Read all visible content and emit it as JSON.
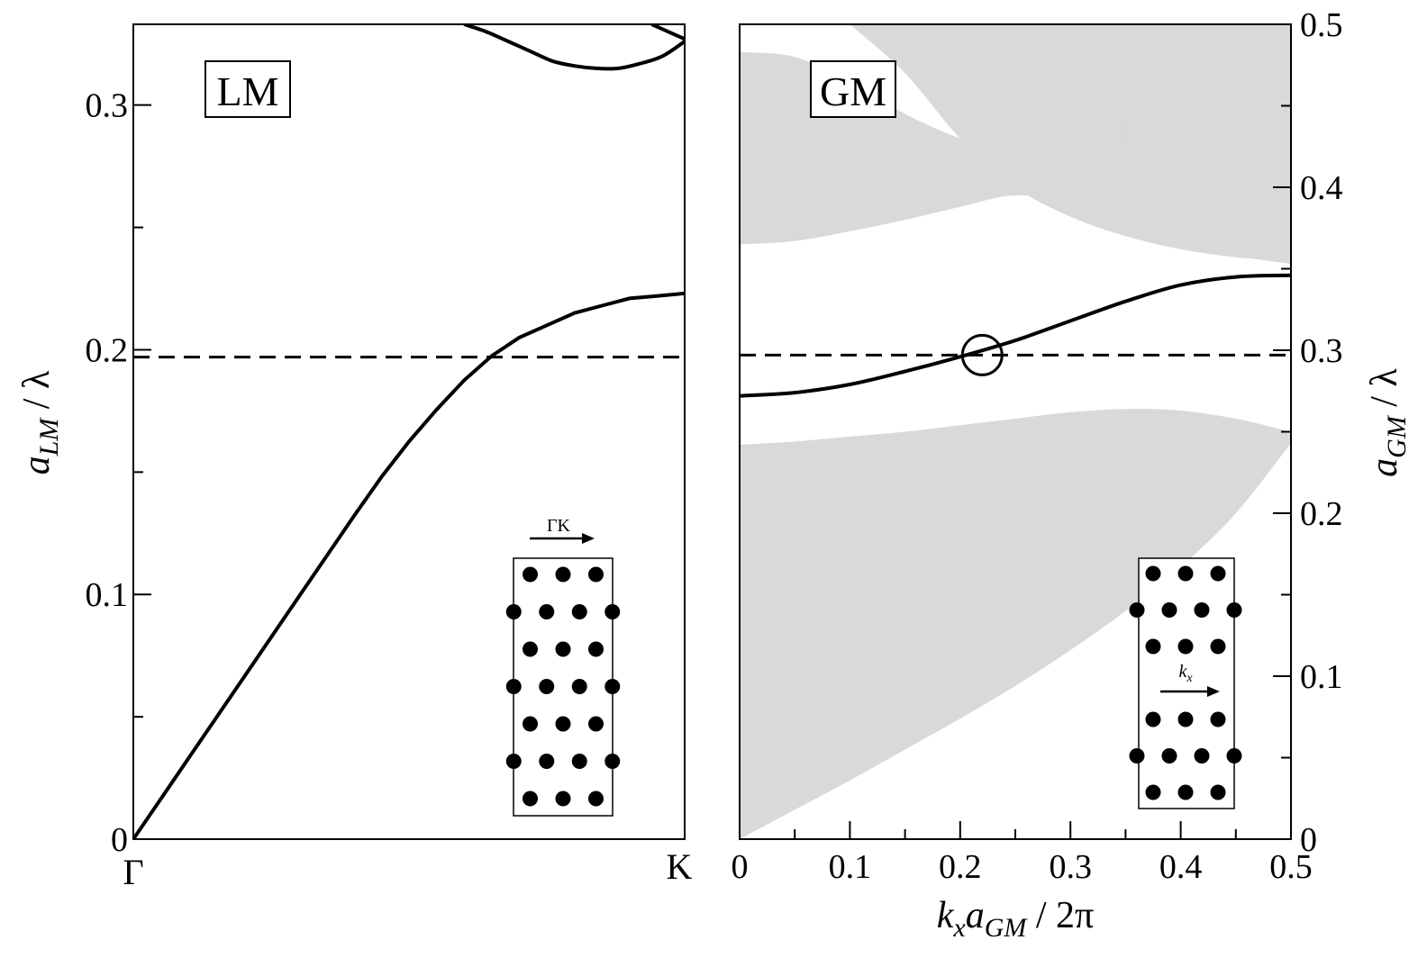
{
  "chart_data": [
    {
      "type": "line",
      "title": "",
      "panel_label": "LM",
      "xlabel": "",
      "ylabel": "a_LM / λ",
      "ylabel_parts": {
        "var": "a",
        "sub": "LM",
        "rest": "/ λ"
      },
      "x_ticks": [
        "Γ",
        "K"
      ],
      "xlim": [
        0,
        1
      ],
      "ylim": [
        0,
        0.333
      ],
      "y_major_ticks": [
        0,
        0.1,
        0.2,
        0.3
      ],
      "y_tick_labels": [
        "0",
        "0.1",
        "0.2",
        "0.3"
      ],
      "y_minor_ticks": [
        0.05,
        0.15,
        0.25
      ],
      "reference_line": {
        "y": 0.197,
        "style": "dashed"
      },
      "series": [
        {
          "x": [
            0,
            0.05,
            0.1,
            0.15,
            0.2,
            0.25,
            0.3,
            0.35,
            0.4,
            0.45,
            0.5,
            0.55,
            0.6,
            0.65,
            0.7,
            0.75,
            0.8,
            0.85,
            0.9,
            0.95,
            1.0
          ],
          "y": [
            0,
            0.0165,
            0.033,
            0.0495,
            0.066,
            0.0825,
            0.099,
            0.1155,
            0.132,
            0.148,
            0.1625,
            0.1755,
            0.1875,
            0.1975,
            0.205,
            0.21,
            0.215,
            0.218,
            0.221,
            0.222,
            0.223
          ]
        },
        {
          "x": [
            0.6,
            0.64,
            0.68,
            0.72,
            0.76,
            0.8,
            0.84,
            0.88,
            0.92,
            0.96,
            1.0
          ],
          "y": [
            0.333,
            0.33,
            0.326,
            0.322,
            0.318,
            0.316,
            0.315,
            0.315,
            0.317,
            0.32,
            0.326
          ]
        },
        {
          "x": [
            0.94,
            0.97,
            1.0
          ],
          "y": [
            0.333,
            0.33,
            0.327
          ]
        }
      ],
      "inset": {
        "direction_label": "ΓK",
        "rows": [
          3,
          4,
          3,
          4,
          3,
          4,
          3
        ]
      }
    },
    {
      "type": "area",
      "title": "",
      "panel_label": "GM",
      "xlabel": "k_x a_GM / 2π",
      "xlabel_parts": {
        "k": "k",
        "k_sub": "x",
        "a": "a",
        "a_sub": "GM",
        "rest": "/ 2π"
      },
      "ylabel": "a_GM / λ",
      "ylabel_parts": {
        "var": "a",
        "sub": "GM",
        "rest": "/ λ"
      },
      "xlim": [
        0,
        0.5
      ],
      "ylim": [
        0,
        0.5
      ],
      "x_major_ticks": [
        0,
        0.1,
        0.2,
        0.3,
        0.4,
        0.5
      ],
      "x_tick_labels": [
        "0",
        "0.1",
        "0.2",
        "0.3",
        "0.4",
        "0.5"
      ],
      "y_major_ticks": [
        0,
        0.1,
        0.2,
        0.3,
        0.4,
        0.5
      ],
      "y_tick_labels": [
        "0",
        "0.1",
        "0.2",
        "0.3",
        "0.4",
        "0.5"
      ],
      "reference_line": {
        "y": 0.297,
        "style": "dashed"
      },
      "marker": {
        "x": 0.22,
        "y": 0.297,
        "shape": "open-circle"
      },
      "shaded_color": "#d9d9d9",
      "shaded_bands": [
        {
          "x": [
            0,
            0.05,
            0.1,
            0.15,
            0.2,
            0.25,
            0.3,
            0.35,
            0.4,
            0.45,
            0.5
          ],
          "lower": [
            0,
            0.018,
            0.036,
            0.055,
            0.074,
            0.094,
            0.116,
            0.14,
            0.167,
            0.2,
            0.243
          ],
          "upper": [
            0.242,
            0.244,
            0.247,
            0.25,
            0.254,
            0.258,
            0.262,
            0.264,
            0.263,
            0.258,
            0.25
          ]
        },
        {
          "x": [
            0,
            0.05,
            0.1,
            0.15,
            0.2,
            0.25,
            0.3,
            0.35,
            0.4,
            0.45,
            0.5
          ],
          "lower": [
            0.365,
            0.367,
            0.373,
            0.38,
            0.388,
            0.395,
            0.39,
            0.379,
            0.367,
            0.358,
            0.353
          ],
          "upper": [
            0.483,
            0.48,
            0.465,
            0.445,
            0.43,
            0.42,
            0.413,
            0.405,
            0.4,
            0.398,
            0.397
          ]
        },
        {
          "x": [
            0.1,
            0.15,
            0.2,
            0.25,
            0.3,
            0.35,
            0.4,
            0.45,
            0.5
          ],
          "lower": [
            0.5,
            0.47,
            0.43,
            0.4,
            0.382,
            0.37,
            0.362,
            0.357,
            0.355
          ],
          "upper": [
            0.5,
            0.5,
            0.5,
            0.5,
            0.5,
            0.5,
            0.5,
            0.5,
            0.5
          ]
        },
        {
          "x": [
            0.35,
            0.4,
            0.45,
            0.5
          ],
          "lower": [
            0.425,
            0.438,
            0.45,
            0.455
          ],
          "upper": [
            0.442,
            0.458,
            0.46,
            0.465
          ]
        },
        {
          "x": [
            0.39,
            0.42,
            0.45,
            0.5
          ],
          "lower": [
            0.4,
            0.41,
            0.415,
            0.42
          ],
          "upper": [
            0.404,
            0.415,
            0.42,
            0.425
          ]
        }
      ],
      "series": [
        {
          "x": [
            0,
            0.05,
            0.1,
            0.15,
            0.2,
            0.25,
            0.3,
            0.35,
            0.4,
            0.45,
            0.5
          ],
          "y": [
            0.272,
            0.274,
            0.279,
            0.287,
            0.296,
            0.306,
            0.318,
            0.33,
            0.34,
            0.345,
            0.346
          ]
        }
      ],
      "inset": {
        "direction_label": "k_x",
        "rows": [
          3,
          4,
          3,
          0,
          3,
          4,
          3
        ]
      }
    }
  ]
}
